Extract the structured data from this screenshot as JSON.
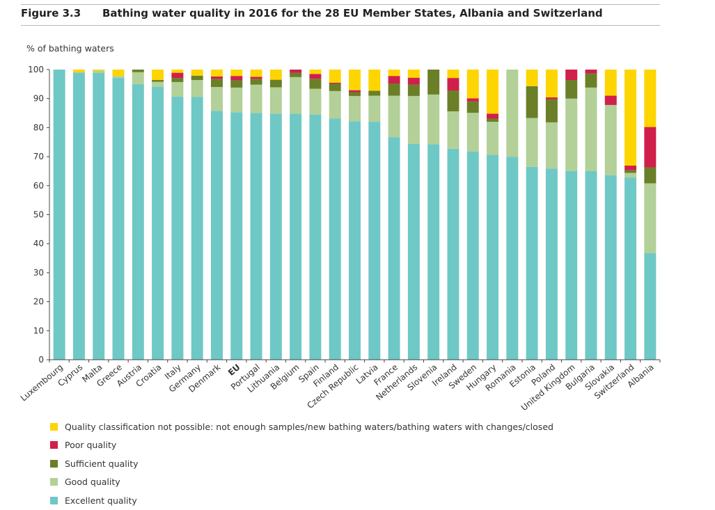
{
  "figure": {
    "number": "Figure 3.3",
    "title": "Bathing water quality in 2016 for the 28 EU Member States, Albania and Switzerland"
  },
  "chart_data": {
    "type": "bar",
    "stacked": true,
    "ylabel": "% of bathing waters",
    "xlabel": "",
    "ylim": [
      0,
      100
    ],
    "yticks": [
      0,
      10,
      20,
      30,
      40,
      50,
      60,
      70,
      80,
      90,
      100
    ],
    "grid": false,
    "legend_position": "bottom",
    "categories": [
      "Luxembourg",
      "Cyprus",
      "Malta",
      "Greece",
      "Austria",
      "Croatia",
      "Italy",
      "Germany",
      "Denmark",
      "EU",
      "Portugal",
      "Lithuania",
      "Belgium",
      "Spain",
      "Finland",
      "Czech Republic",
      "Latvia",
      "France",
      "Netherlands",
      "Slovenia",
      "Ireland",
      "Sweden",
      "Hungary",
      "Romania",
      "Estonia",
      "Poland",
      "United Kingdom",
      "Bulgaria",
      "Slovakia",
      "Switzerland",
      "Albania"
    ],
    "bold_categories": [
      "EU"
    ],
    "series": [
      {
        "name": "Excellent quality",
        "color": "#6ec8c6",
        "values": [
          100,
          99,
          98.8,
          97.1,
          95,
          94,
          90.7,
          90.6,
          85.8,
          85.3,
          85,
          84.8,
          84.8,
          84.5,
          83.1,
          82.2,
          82,
          76.7,
          74.4,
          74.3,
          72.7,
          71.7,
          70.6,
          69.9,
          66.5,
          65.9,
          65,
          65,
          63.6,
          62.8,
          36.7
        ]
      },
      {
        "name": "Good quality",
        "color": "#b2d097",
        "values": [
          0,
          0,
          0.8,
          0.7,
          4.1,
          1.8,
          5,
          5.8,
          8.2,
          8.5,
          9.8,
          9.1,
          12.6,
          8.9,
          9.5,
          8.7,
          9,
          14.3,
          16.5,
          17.1,
          12.9,
          13.4,
          11.4,
          30.1,
          16.8,
          15.9,
          25,
          28.8,
          24.2,
          1.6,
          24.1
        ]
      },
      {
        "name": "Sufficient quality",
        "color": "#6b7f28",
        "values": [
          0,
          0,
          0,
          0,
          0.9,
          0.6,
          1.4,
          1.5,
          2.8,
          2.5,
          2,
          2.6,
          1.5,
          3.4,
          2.5,
          1.3,
          1.7,
          4.2,
          3.9,
          8.6,
          7.2,
          3.9,
          1.1,
          0,
          11,
          8,
          6.4,
          4.9,
          0,
          0.9,
          5.5
        ]
      },
      {
        "name": "Poor quality",
        "color": "#d01f4b",
        "values": [
          0,
          0,
          0,
          0,
          0,
          0,
          1.8,
          0,
          0.8,
          1.5,
          0.7,
          0,
          1.1,
          1.7,
          0.4,
          0.7,
          0,
          2.6,
          2.4,
          0,
          4.3,
          1.1,
          1.7,
          0,
          0,
          0.6,
          3.6,
          1.3,
          3.2,
          1.6,
          13.9
        ]
      },
      {
        "name": "Quality classification not possible: not enough samples/new bathing waters/bathing waters with changes/closed",
        "color": "#fed500",
        "values": [
          0,
          1,
          0.4,
          2.2,
          0,
          3.6,
          1.1,
          2.1,
          2.4,
          2.2,
          2.5,
          3.5,
          0,
          1.5,
          4.5,
          7.1,
          7.3,
          2.2,
          2.8,
          0,
          2.9,
          9.9,
          15.2,
          0,
          5.7,
          9.6,
          0,
          0,
          9,
          33.1,
          19.8
        ]
      }
    ]
  },
  "legend": {
    "items": [
      {
        "label": "Quality classification not possible: not enough samples/new bathing waters/bathing waters with changes/closed",
        "color": "#fed500"
      },
      {
        "label": "Poor quality",
        "color": "#d01f4b"
      },
      {
        "label": "Sufficient quality",
        "color": "#6b7f28"
      },
      {
        "label": "Good quality",
        "color": "#b2d097"
      },
      {
        "label": "Excellent quality",
        "color": "#6ec8c6"
      }
    ]
  }
}
